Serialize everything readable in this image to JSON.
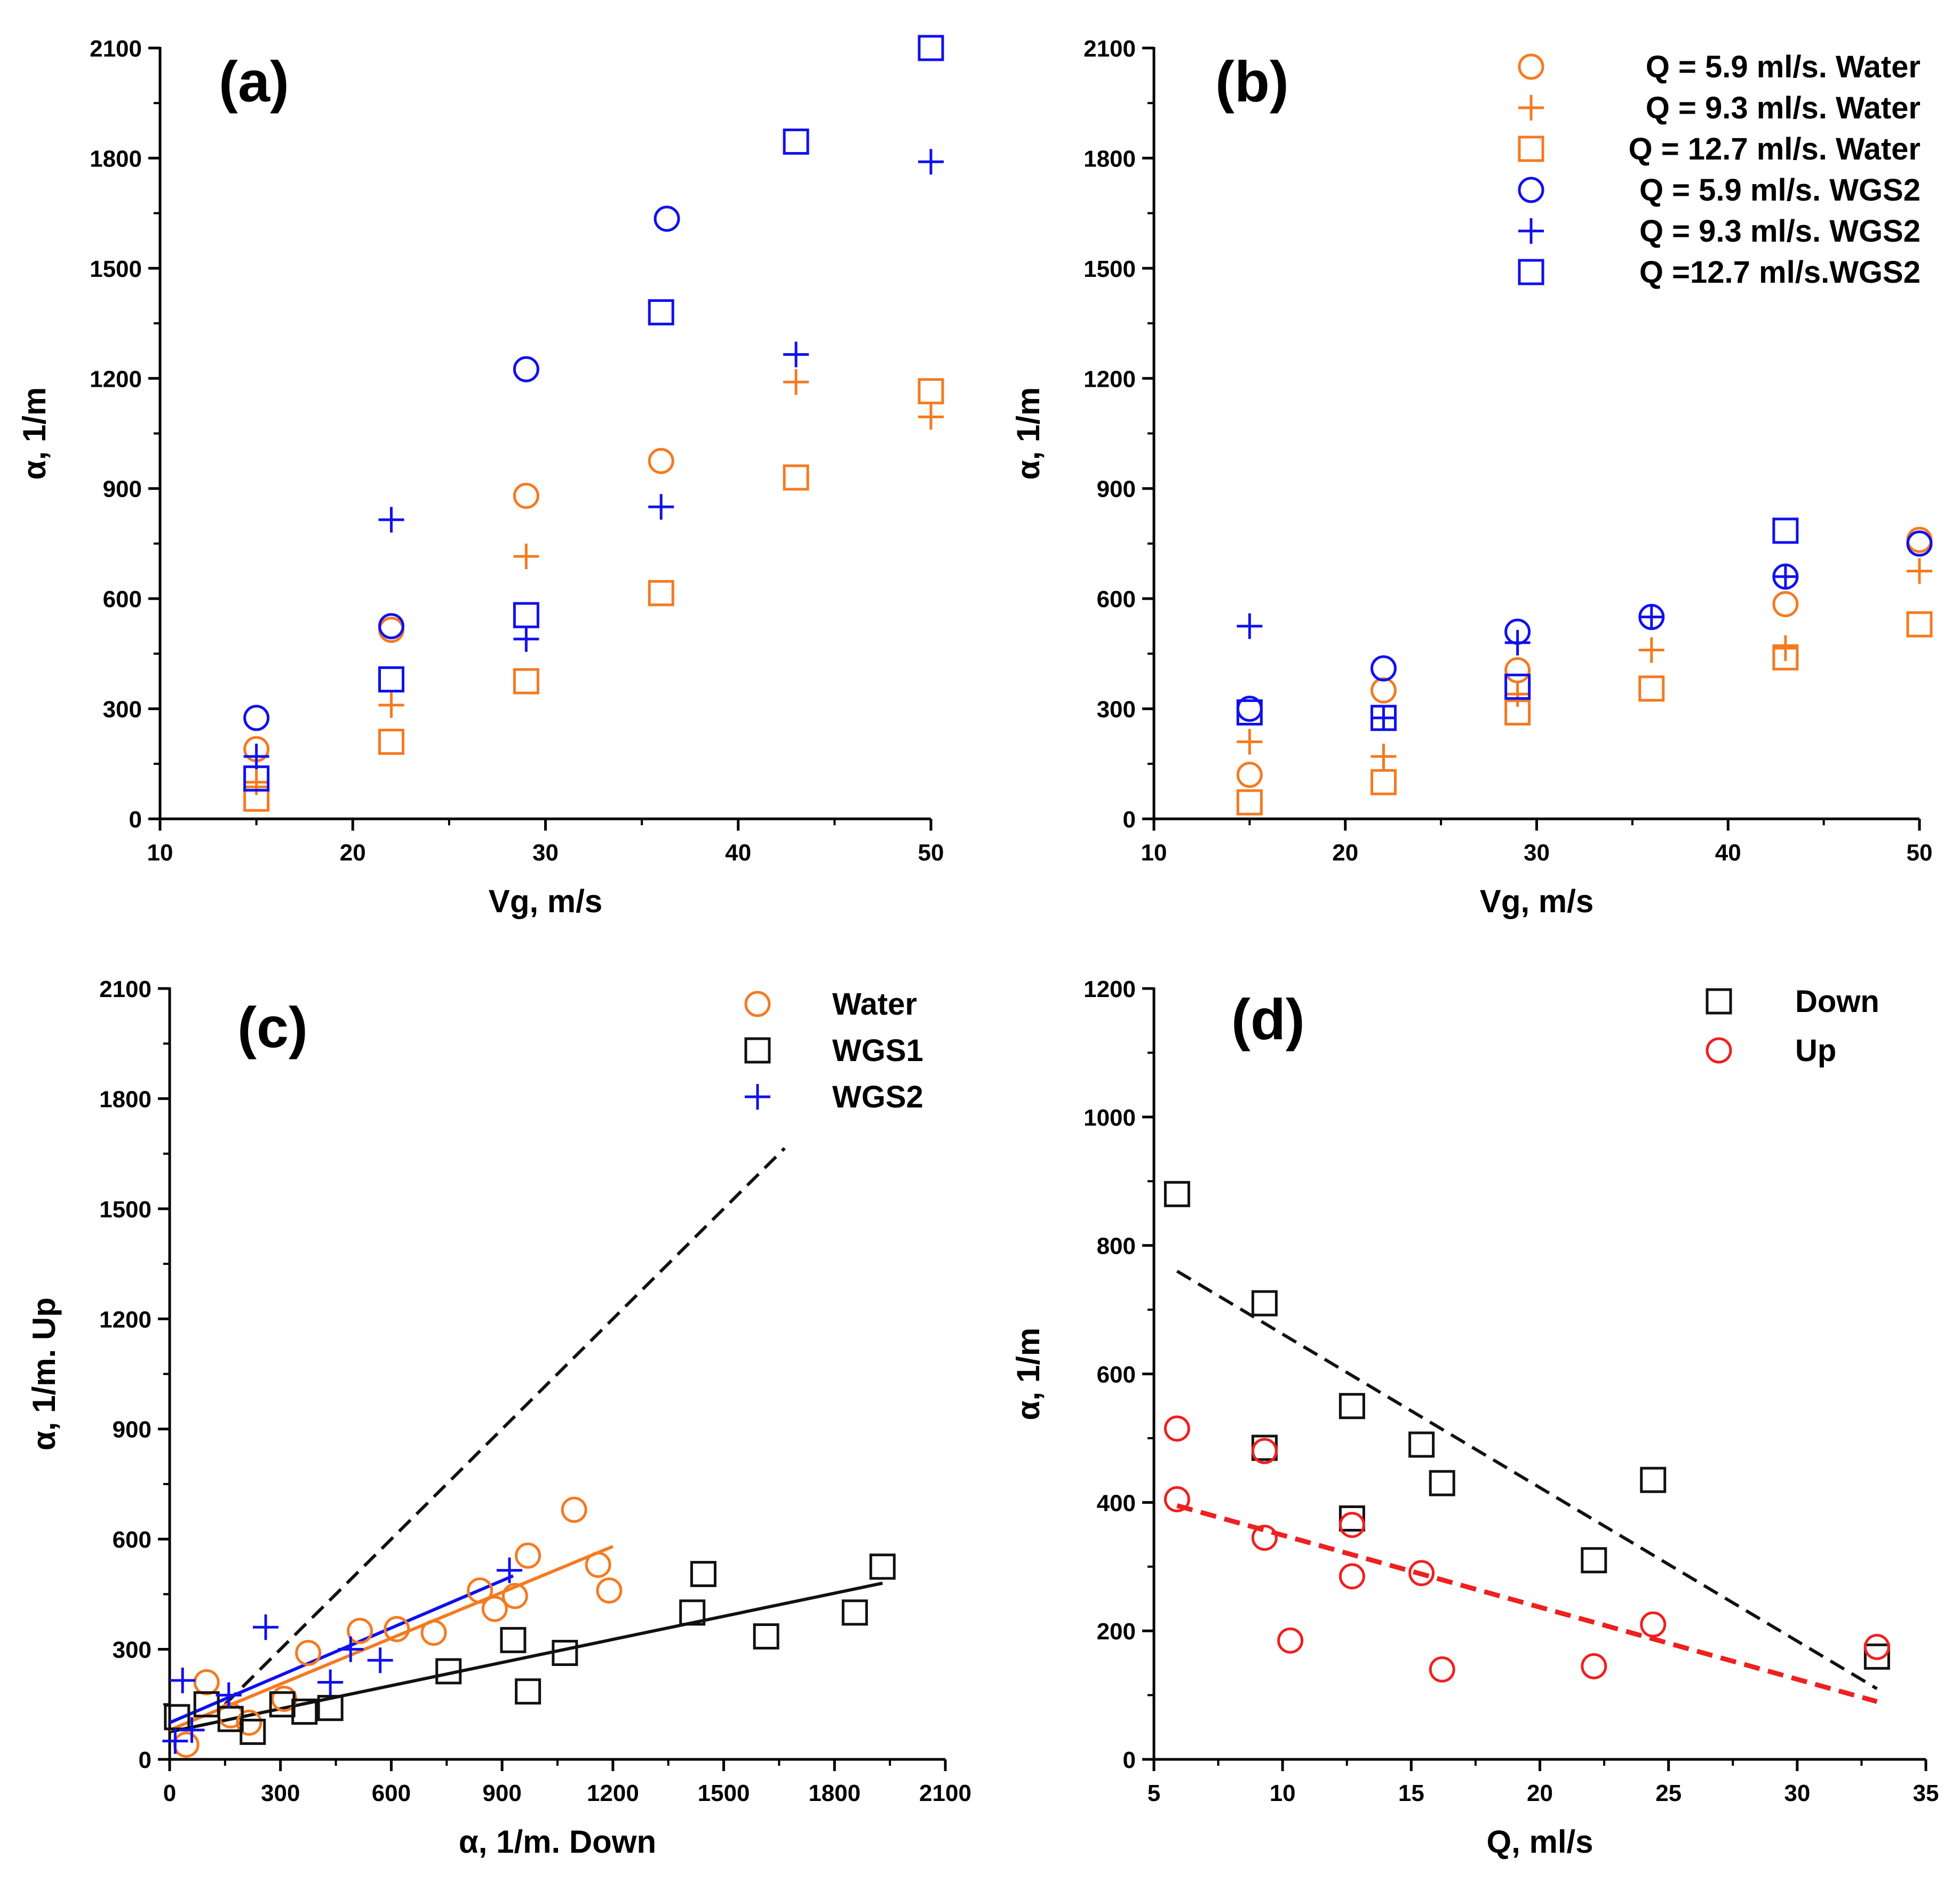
{
  "colors": {
    "orange": "#f47a20",
    "blue": "#1010ee",
    "black": "#111111",
    "red": "#ee2020"
  },
  "chart_data": [
    {
      "id": "a",
      "type": "scatter",
      "panel_label": "(a)",
      "xlabel": "Vg, m/s",
      "ylabel": "α, 1/m",
      "xlim": [
        10,
        50
      ],
      "ylim": [
        0,
        2100
      ],
      "xticks": [
        "10",
        "20",
        "30",
        "40",
        "50"
      ],
      "yticks": [
        "0",
        "300",
        "600",
        "900",
        "1200",
        "1500",
        "1800",
        "2100"
      ],
      "legend": null,
      "series": [
        {
          "name": "Q = 5.9 ml/s. Water",
          "marker": "circle",
          "color": "orange",
          "x": [
            15,
            22,
            29,
            36
          ],
          "y": [
            190,
            515,
            880,
            975
          ]
        },
        {
          "name": "Q = 9.3 ml/s. Water",
          "marker": "plus",
          "color": "orange",
          "x": [
            15,
            22,
            29,
            43,
            50
          ],
          "y": [
            100,
            310,
            715,
            1190,
            1095
          ]
        },
        {
          "name": "Q = 12.7 ml/s. Water",
          "marker": "square",
          "color": "orange",
          "x": [
            15,
            22,
            29,
            36,
            43,
            50
          ],
          "y": [
            55,
            210,
            375,
            615,
            930,
            1165
          ]
        },
        {
          "name": "Q = 5.9 ml/s. WGS2",
          "marker": "circle",
          "color": "blue",
          "x": [
            15,
            22,
            29,
            36.3
          ],
          "y": [
            275,
            525,
            1225,
            1635
          ]
        },
        {
          "name": "Q = 9.3 ml/s. WGS2",
          "marker": "plus",
          "color": "blue",
          "x": [
            15,
            22,
            29,
            36,
            43,
            50
          ],
          "y": [
            170,
            815,
            490,
            850,
            1265,
            1790
          ]
        },
        {
          "name": "Q = 12.7 ml/s. WGS2",
          "marker": "square",
          "color": "blue",
          "x": [
            15,
            22,
            29,
            36,
            43,
            50
          ],
          "y": [
            110,
            380,
            555,
            1380,
            1845,
            2100
          ]
        }
      ],
      "lines": []
    },
    {
      "id": "b",
      "type": "scatter",
      "panel_label": "(b)",
      "xlabel": "Vg, m/s",
      "ylabel": "α, 1/m",
      "xlim": [
        10,
        50
      ],
      "ylim": [
        0,
        2100
      ],
      "xticks": [
        "10",
        "20",
        "30",
        "40",
        "50"
      ],
      "yticks": [
        "0",
        "300",
        "600",
        "900",
        "1200",
        "1500",
        "1800",
        "2100"
      ],
      "legend": "top-right",
      "series": [
        {
          "name": "Q = 5.9 ml/s. Water",
          "marker": "circle",
          "color": "orange",
          "x": [
            15,
            22,
            29,
            43,
            50
          ],
          "y": [
            120,
            350,
            405,
            585,
            760
          ]
        },
        {
          "name": "Q = 9.3 ml/s. Water",
          "marker": "plus",
          "color": "orange",
          "x": [
            15,
            22,
            29,
            36,
            43,
            50
          ],
          "y": [
            210,
            170,
            340,
            460,
            465,
            675
          ]
        },
        {
          "name": "Q = 12.7 ml/s. Water",
          "marker": "square",
          "color": "orange",
          "x": [
            15,
            22,
            29,
            36,
            43,
            50
          ],
          "y": [
            45,
            100,
            290,
            355,
            440,
            530
          ]
        },
        {
          "name": "Q = 5.9 ml/s. WGS2",
          "marker": "circle",
          "color": "blue",
          "x": [
            15,
            22,
            29,
            36,
            43,
            50
          ],
          "y": [
            300,
            410,
            510,
            550,
            660,
            750
          ]
        },
        {
          "name": "Q = 9.3 ml/s. WGS2",
          "marker": "plus",
          "color": "blue",
          "x": [
            15,
            22,
            29,
            36,
            43
          ],
          "y": [
            525,
            275,
            480,
            550,
            660
          ]
        },
        {
          "name": "Q =12.7 ml/s.WGS2",
          "marker": "square",
          "color": "blue",
          "x": [
            15,
            22,
            29,
            43
          ],
          "y": [
            290,
            275,
            360,
            785
          ]
        }
      ],
      "lines": []
    },
    {
      "id": "c",
      "type": "scatter",
      "panel_label": "(c)",
      "xlabel": "α, 1/m. Down",
      "ylabel": "α, 1/m. Up",
      "xlim": [
        0,
        2100
      ],
      "ylim": [
        0,
        2100
      ],
      "xticks": [
        "0",
        "300",
        "600",
        "900",
        "1200",
        "1500",
        "1800",
        "2100"
      ],
      "yticks": [
        "0",
        "300",
        "600",
        "900",
        "1200",
        "1500",
        "1800",
        "2100"
      ],
      "legend": "top-right",
      "series": [
        {
          "name": "Water",
          "marker": "circle",
          "color": "orange",
          "x": [
            45,
            100,
            165,
            215,
            310,
            375,
            515,
            615,
            715,
            840,
            880,
            935,
            970,
            1095,
            1160,
            1190
          ],
          "y": [
            40,
            210,
            120,
            100,
            165,
            290,
            350,
            355,
            345,
            460,
            410,
            445,
            555,
            680,
            530,
            460
          ]
        },
        {
          "name": "WGS1",
          "marker": "square",
          "color": "black",
          "x": [
            20,
            100,
            165,
            225,
            305,
            365,
            435,
            755,
            930,
            970,
            1070,
            1415,
            1445,
            1615,
            1855,
            1930
          ],
          "y": [
            115,
            150,
            110,
            75,
            150,
            130,
            140,
            240,
            325,
            185,
            290,
            400,
            505,
            335,
            400,
            525
          ]
        },
        {
          "name": "WGS2",
          "marker": "plus",
          "color": "blue",
          "x": [
            15,
            35,
            60,
            160,
            260,
            435,
            490,
            570,
            920
          ],
          "y": [
            50,
            215,
            80,
            175,
            360,
            210,
            300,
            270,
            515
          ]
        }
      ],
      "lines": [
        {
          "name": "y = x",
          "color": "black",
          "style": "dashed",
          "x": [
            150,
            1665
          ],
          "y": [
            150,
            1665
          ]
        },
        {
          "name": "WGS1 fit",
          "color": "black",
          "style": "solid",
          "x": [
            0,
            1930
          ],
          "y": [
            75,
            480
          ]
        },
        {
          "name": "Water fit",
          "color": "orange",
          "style": "solid",
          "x": [
            0,
            1200
          ],
          "y": [
            80,
            580
          ]
        },
        {
          "name": "WGS2 fit",
          "color": "blue",
          "style": "solid",
          "x": [
            0,
            930
          ],
          "y": [
            100,
            500
          ]
        }
      ]
    },
    {
      "id": "d",
      "type": "scatter",
      "panel_label": "(d)",
      "xlabel": "Q, ml/s",
      "ylabel": "α, 1/m",
      "xlim": [
        5,
        35
      ],
      "ylim": [
        0,
        1200
      ],
      "xticks": [
        "5",
        "10",
        "15",
        "20",
        "25",
        "30",
        "35"
      ],
      "yticks": [
        "0",
        "200",
        "400",
        "600",
        "800",
        "1000",
        "1200"
      ],
      "legend": "top-right",
      "series": [
        {
          "name": "Down",
          "marker": "square",
          "color": "black",
          "x": [
            5.9,
            9.3,
            9.3,
            12.7,
            12.7,
            15.4,
            16.2,
            22.1,
            24.4,
            33.1
          ],
          "y": [
            880,
            710,
            485,
            550,
            375,
            490,
            430,
            310,
            435,
            160
          ]
        },
        {
          "name": "Up",
          "marker": "circle",
          "color": "red",
          "x": [
            5.9,
            5.9,
            9.3,
            9.3,
            10.3,
            12.7,
            12.7,
            15.4,
            16.2,
            22.1,
            24.4,
            33.1
          ],
          "y": [
            515,
            405,
            480,
            345,
            185,
            365,
            285,
            290,
            140,
            145,
            210,
            175
          ]
        }
      ],
      "lines": [
        {
          "name": "Down trend",
          "color": "black",
          "style": "dashed",
          "x": [
            5.9,
            33.1
          ],
          "y": [
            760,
            110
          ]
        },
        {
          "name": "Up trend",
          "color": "red",
          "style": "dashed-thick",
          "x": [
            5.9,
            33.1
          ],
          "y": [
            395,
            90
          ]
        }
      ]
    }
  ]
}
